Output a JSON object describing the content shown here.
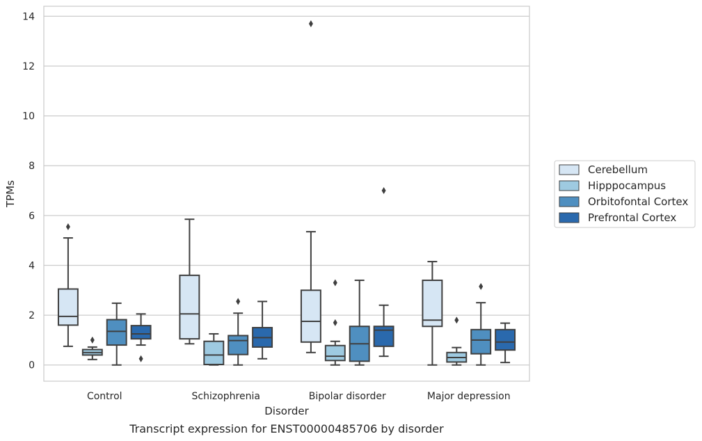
{
  "chart_data": {
    "type": "box",
    "caption": "Transcript expression for ENST00000485706 by disorder",
    "xlabel": "Disorder",
    "ylabel": "TPMs",
    "ylim": [
      -0.65,
      14.4
    ],
    "yticks": [
      0,
      2,
      4,
      6,
      8,
      10,
      12,
      14
    ],
    "grid": true,
    "legend_position": "right",
    "categories": [
      "Control",
      "Schizophrenia",
      "Bipolar disorder",
      "Major depression"
    ],
    "series": [
      {
        "name": "Cerebellum",
        "color": "#d6e6f4",
        "boxes": [
          {
            "whislo": 0.75,
            "q1": 1.6,
            "med": 1.95,
            "q3": 3.05,
            "whishi": 5.1,
            "fliers": [
              5.55
            ]
          },
          {
            "whislo": 0.85,
            "q1": 1.05,
            "med": 2.05,
            "q3": 3.6,
            "whishi": 5.85,
            "fliers": []
          },
          {
            "whislo": 0.5,
            "q1": 0.92,
            "med": 1.75,
            "q3": 3.0,
            "whishi": 5.35,
            "fliers": [
              13.7
            ]
          },
          {
            "whislo": 0.0,
            "q1": 1.55,
            "med": 1.8,
            "q3": 3.4,
            "whishi": 4.15,
            "fliers": []
          }
        ]
      },
      {
        "name": "Hipppocampus",
        "color": "#9ecae1",
        "boxes": [
          {
            "whislo": 0.22,
            "q1": 0.4,
            "med": 0.5,
            "q3": 0.62,
            "whishi": 0.72,
            "fliers": [
              1.0
            ]
          },
          {
            "whislo": 0.0,
            "q1": 0.02,
            "med": 0.4,
            "q3": 0.95,
            "whishi": 1.25,
            "fliers": []
          },
          {
            "whislo": 0.0,
            "q1": 0.18,
            "med": 0.35,
            "q3": 0.78,
            "whishi": 0.95,
            "fliers": [
              1.7,
              3.3
            ]
          },
          {
            "whislo": 0.0,
            "q1": 0.12,
            "med": 0.3,
            "q3": 0.5,
            "whishi": 0.7,
            "fliers": [
              1.8
            ]
          }
        ]
      },
      {
        "name": "Orbitofontal Cortex",
        "color": "#4f8fc0",
        "boxes": [
          {
            "whislo": 0.0,
            "q1": 0.8,
            "med": 1.35,
            "q3": 1.82,
            "whishi": 2.48,
            "fliers": []
          },
          {
            "whislo": 0.0,
            "q1": 0.42,
            "med": 0.98,
            "q3": 1.18,
            "whishi": 2.08,
            "fliers": [
              2.55
            ]
          },
          {
            "whislo": 0.0,
            "q1": 0.15,
            "med": 0.85,
            "q3": 1.55,
            "whishi": 3.4,
            "fliers": []
          },
          {
            "whislo": 0.0,
            "q1": 0.45,
            "med": 1.0,
            "q3": 1.42,
            "whishi": 2.5,
            "fliers": [
              3.15
            ]
          }
        ]
      },
      {
        "name": "Prefrontal Cortex",
        "color": "#2a69ad",
        "boxes": [
          {
            "whislo": 0.8,
            "q1": 1.05,
            "med": 1.25,
            "q3": 1.58,
            "whishi": 2.05,
            "fliers": [
              0.25
            ]
          },
          {
            "whislo": 0.25,
            "q1": 0.72,
            "med": 1.1,
            "q3": 1.5,
            "whishi": 2.55,
            "fliers": []
          },
          {
            "whislo": 0.35,
            "q1": 0.75,
            "med": 1.4,
            "q3": 1.55,
            "whishi": 2.4,
            "fliers": [
              7.0
            ]
          },
          {
            "whislo": 0.1,
            "q1": 0.6,
            "med": 0.92,
            "q3": 1.42,
            "whishi": 1.68,
            "fliers": []
          }
        ]
      }
    ]
  }
}
